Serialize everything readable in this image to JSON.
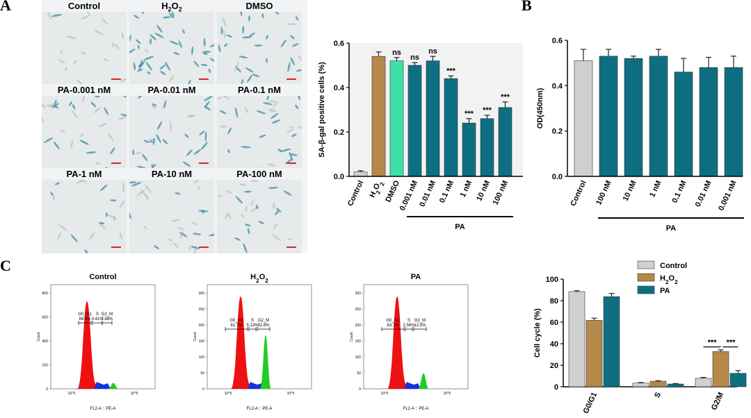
{
  "panel_labels": {
    "a": "A",
    "b": "B",
    "c": "C"
  },
  "micrographs": [
    {
      "label": "Control",
      "density": 0.0
    },
    {
      "label": "H2O2",
      "density": 1.0
    },
    {
      "label": "DMSO",
      "density": 0.7
    },
    {
      "label": "PA-0.001 nM",
      "density": 0.6
    },
    {
      "label": "PA-0.01 nM",
      "density": 0.55
    },
    {
      "label": "PA-0.1 nM",
      "density": 0.65
    },
    {
      "label": "PA-1 nM",
      "density": 0.1
    },
    {
      "label": "PA-10 nM",
      "density": 0.35
    },
    {
      "label": "PA-100 nM",
      "density": 0.4
    }
  ],
  "chart_data": [
    {
      "id": "A",
      "type": "bar",
      "ylabel": "SA-β-gal positive cells (%)",
      "ylim": [
        0,
        0.6
      ],
      "yticks": [
        "0.0",
        "0.2",
        "0.4",
        "0.6"
      ],
      "categories": [
        "Control",
        "H2O2",
        "DMSO",
        "0.001 nM",
        "0.01 nM",
        "0.1 nM",
        "1 nM",
        "10 nM",
        "100 nM"
      ],
      "values": [
        0.02,
        0.54,
        0.52,
        0.5,
        0.52,
        0.44,
        0.24,
        0.26,
        0.31
      ],
      "errors": [
        0.005,
        0.02,
        0.015,
        0.012,
        0.02,
        0.012,
        0.02,
        0.015,
        0.025
      ],
      "significance": [
        "",
        "",
        "ns",
        "ns",
        "ns",
        "***",
        "***",
        "***",
        "***"
      ],
      "colors": [
        "#d0d0d0",
        "#b5894a",
        "#3ee0a8",
        "#0f6f82",
        "#0f6f82",
        "#0f6f82",
        "#0f6f82",
        "#0f6f82",
        "#0f6f82"
      ],
      "group_label": "PA"
    },
    {
      "id": "B",
      "type": "bar",
      "ylabel": "OD(450nm)",
      "ylim": [
        0,
        0.6
      ],
      "yticks": [
        "0.0",
        "0.2",
        "0.4",
        "0.6"
      ],
      "categories": [
        "Control",
        "100 nM",
        "10 nM",
        "1 nM",
        "0.1 nM",
        "0.01 nM",
        "0.001 nM"
      ],
      "values": [
        0.51,
        0.53,
        0.52,
        0.53,
        0.46,
        0.48,
        0.48
      ],
      "errors": [
        0.05,
        0.03,
        0.01,
        0.03,
        0.06,
        0.045,
        0.05
      ],
      "colors": [
        "#d0d0d0",
        "#0f6f82",
        "#0f6f82",
        "#0f6f82",
        "#0f6f82",
        "#0f6f82",
        "#0f6f82"
      ],
      "group_label": "PA"
    },
    {
      "id": "C-cycle",
      "type": "bar",
      "ylabel": "Cell cycle (%)",
      "ylim": [
        0,
        100
      ],
      "yticks": [
        "0",
        "20",
        "40",
        "60",
        "80",
        "100"
      ],
      "categories": [
        "G0/G1",
        "S",
        "G2/M"
      ],
      "series": [
        {
          "name": "Control",
          "color": "#d0d0d0",
          "values": [
            88.4,
            3.41,
            7.88
          ],
          "errors": [
            0.8,
            0.5,
            0.8
          ]
        },
        {
          "name": "H2O2",
          "color": "#b5894a",
          "values": [
            61.7,
            5.13,
            32.8
          ],
          "errors": [
            2.0,
            0.5,
            1.5
          ]
        },
        {
          "name": "PA",
          "color": "#0f6f82",
          "values": [
            83.7,
            2.56,
            12.5
          ],
          "errors": [
            3.0,
            0.4,
            2.5
          ]
        }
      ],
      "legend_position": "top",
      "significance": [
        {
          "category": "G2/M",
          "label": "***"
        },
        {
          "category": "G2/M",
          "label": "***"
        }
      ]
    },
    {
      "id": "C-flow",
      "type": "area",
      "plots": [
        {
          "title": "Control",
          "gates": [
            "G0_G1",
            "S",
            "G2_M"
          ],
          "percents": [
            "88.4%",
            "3.41%",
            "7.88%"
          ],
          "yticks": [
            "0",
            "200",
            "400",
            "600",
            "800"
          ],
          "xlabel": "FL2-A :: PE-A",
          "ylabel": "Count",
          "xtick": "10^5",
          "g1_height": 0.9,
          "g2_height": 0.06
        },
        {
          "title": "H2O2",
          "gates": [
            "G0_G1",
            "S",
            "G2_M"
          ],
          "percents": [
            "61.7%",
            "5.13%",
            "32.8%"
          ],
          "yticks": [
            "0",
            "50",
            "100",
            "150",
            "200",
            "250",
            "300"
          ],
          "xlabel": "FL2-A :: PE-A",
          "ylabel": "Count",
          "xtick": "10^5",
          "g1_height": 0.95,
          "g2_height": 0.55
        },
        {
          "title": "PA",
          "gates": [
            "G0_G1",
            "S",
            "G2_M"
          ],
          "percents": [
            "83.7%",
            "2.56%",
            "12.5%"
          ],
          "yticks": [
            "0",
            "50",
            "100",
            "150",
            "200",
            "250",
            "300"
          ],
          "xlabel": "FL2-A :: PE-A",
          "ylabel": "Count",
          "xtick": "10^5",
          "g1_height": 0.95,
          "g2_height": 0.16
        }
      ]
    }
  ]
}
